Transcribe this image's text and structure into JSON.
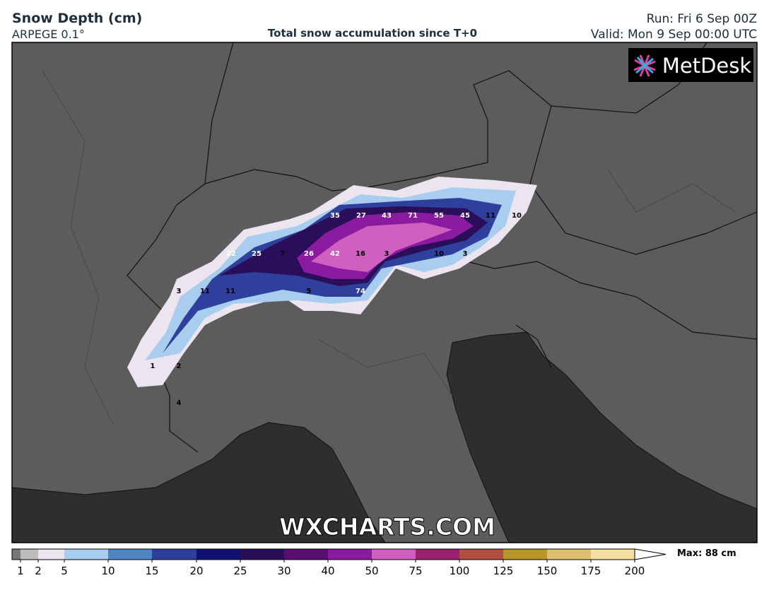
{
  "header": {
    "title": "Snow Depth (cm)",
    "model": "ARPEGE 0.1°",
    "subtitle": "Total snow accumulation since T+0",
    "run": "Run: Fri 6 Sep 00Z",
    "valid": "Valid: Mon 9 Sep 00:00 UTC"
  },
  "map": {
    "logo": "MetDesk",
    "watermark": "WXCHARTS.COM",
    "labels": [
      35,
      27,
      43,
      71,
      55,
      45,
      11,
      10,
      22,
      25,
      7,
      26,
      42,
      16,
      3,
      10,
      3,
      3,
      11,
      11,
      5,
      74,
      1,
      2,
      4
    ]
  },
  "colorbar": {
    "ticks": [
      1,
      2,
      5,
      10,
      15,
      20,
      25,
      30,
      40,
      50,
      75,
      100,
      125,
      150,
      175,
      200
    ],
    "colors": [
      "#777777",
      "#bdbdbd",
      "#ece4ef",
      "#a9cdee",
      "#4e86c5",
      "#2f3f9c",
      "#101070",
      "#2a0e5a",
      "#5a0e74",
      "#8a1aa0",
      "#d060c0",
      "#9a2070",
      "#b05040",
      "#b8962a",
      "#dcc070",
      "#f4e0a0"
    ],
    "max_label": "Max: 88 cm"
  }
}
